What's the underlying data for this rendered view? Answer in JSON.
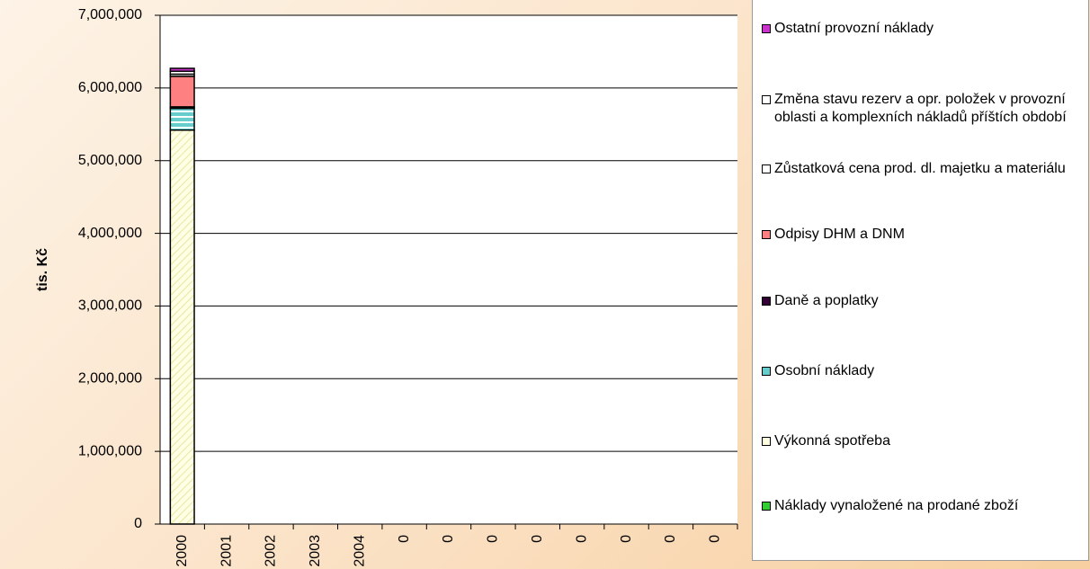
{
  "chart_data": {
    "type": "stacked_bar",
    "y_label": "tis. Kč",
    "categories": [
      "2000",
      "2001",
      "2002",
      "2003",
      "2004",
      "0",
      "0",
      "0",
      "0",
      "0",
      "0",
      "0",
      "0"
    ],
    "series": [
      {
        "name": "Náklady vynaložené na prodané zboží",
        "color": "#33cc33",
        "values": [
          0,
          null,
          null,
          null,
          null,
          null,
          null,
          null,
          null,
          null,
          null,
          null,
          null
        ]
      },
      {
        "name": "Výkonná spotřeba",
        "color": "#ffffe0",
        "values": [
          5420000,
          null,
          null,
          null,
          null,
          null,
          null,
          null,
          null,
          null,
          null,
          null,
          null
        ]
      },
      {
        "name": "Osobní náklady",
        "color": "#66cccc",
        "values": [
          300000,
          null,
          null,
          null,
          null,
          null,
          null,
          null,
          null,
          null,
          null,
          null,
          null
        ]
      },
      {
        "name": "Daně a poplatky",
        "color": "#330033",
        "values": [
          20000,
          null,
          null,
          null,
          null,
          null,
          null,
          null,
          null,
          null,
          null,
          null,
          null
        ]
      },
      {
        "name": "Odpisy DHM a DNM",
        "color": "#ff8080",
        "values": [
          420000,
          null,
          null,
          null,
          null,
          null,
          null,
          null,
          null,
          null,
          null,
          null,
          null
        ]
      },
      {
        "name": "Zůstatková cena prod. dl. majetku a materiálu",
        "color": "#ffffff",
        "values": [
          30000,
          null,
          null,
          null,
          null,
          null,
          null,
          null,
          null,
          null,
          null,
          null,
          null
        ]
      },
      {
        "name": "Změna stavu rezerv a opr. položek v provozní oblasti a komplexních nákladů příštích období",
        "color": "#ffffff",
        "values": [
          40000,
          null,
          null,
          null,
          null,
          null,
          null,
          null,
          null,
          null,
          null,
          null,
          null
        ]
      },
      {
        "name": "Ostatní provozní náklady",
        "color": "#cc33cc",
        "values": [
          40000,
          null,
          null,
          null,
          null,
          null,
          null,
          null,
          null,
          null,
          null,
          null,
          null
        ]
      }
    ],
    "ylim": [
      0,
      7000000
    ],
    "yticks": [
      0,
      {
        "value": 1000000,
        "label": "1,000,000"
      },
      {
        "value": 2000000,
        "label": "2,000,000"
      },
      {
        "value": 3000000,
        "label": "3,000,000"
      },
      {
        "value": 4000000,
        "label": "4,000,000"
      },
      {
        "value": 5000000,
        "label": "5,000,000"
      },
      {
        "value": 6000000,
        "label": "6,000,000"
      },
      {
        "value": 7000000,
        "label": "7,000,000"
      }
    ],
    "grid": true
  }
}
